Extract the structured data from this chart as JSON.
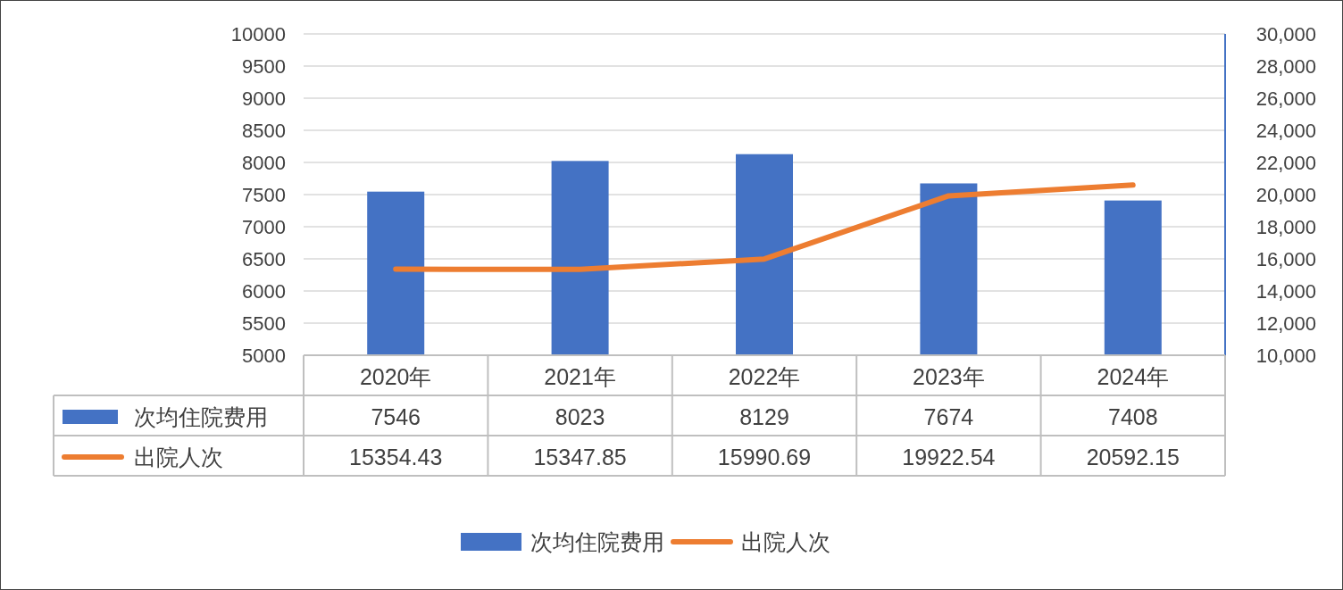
{
  "chart_data": {
    "type": "bar",
    "categories": [
      "2020年",
      "2021年",
      "2022年",
      "2023年",
      "2024年"
    ],
    "series": [
      {
        "name": "次均住院费用",
        "color": "#4472c4",
        "values": [
          7546,
          8023,
          8129,
          7674,
          7408
        ]
      },
      {
        "name": "出院人次",
        "type": "line",
        "axis": "y2",
        "color": "#ed7d31",
        "values": [
          15354.43,
          15347.85,
          15990.69,
          19922.54,
          20592.15
        ]
      }
    ],
    "ylim": [
      5000,
      10000
    ],
    "yticks": [
      5000,
      5500,
      6000,
      6500,
      7000,
      7500,
      8000,
      8500,
      9000,
      9500,
      10000
    ],
    "y2lim": [
      10000,
      30000
    ],
    "y2ticks": [
      {
        "value": 10000,
        "label": "10,000"
      },
      {
        "value": 12000,
        "label": "12,000"
      },
      {
        "value": 14000,
        "label": "14,000"
      },
      {
        "value": 16000,
        "label": "16,000"
      },
      {
        "value": 18000,
        "label": "18,000"
      },
      {
        "value": 20000,
        "label": "20,000"
      },
      {
        "value": 22000,
        "label": "22,000"
      },
      {
        "value": 24000,
        "label": "24,000"
      },
      {
        "value": 26000,
        "label": "26,000"
      },
      {
        "value": 28000,
        "label": "28,000"
      },
      {
        "value": 30000,
        "label": "30,000"
      }
    ],
    "data_labels": true,
    "legend": "bottom",
    "grid": "y"
  }
}
